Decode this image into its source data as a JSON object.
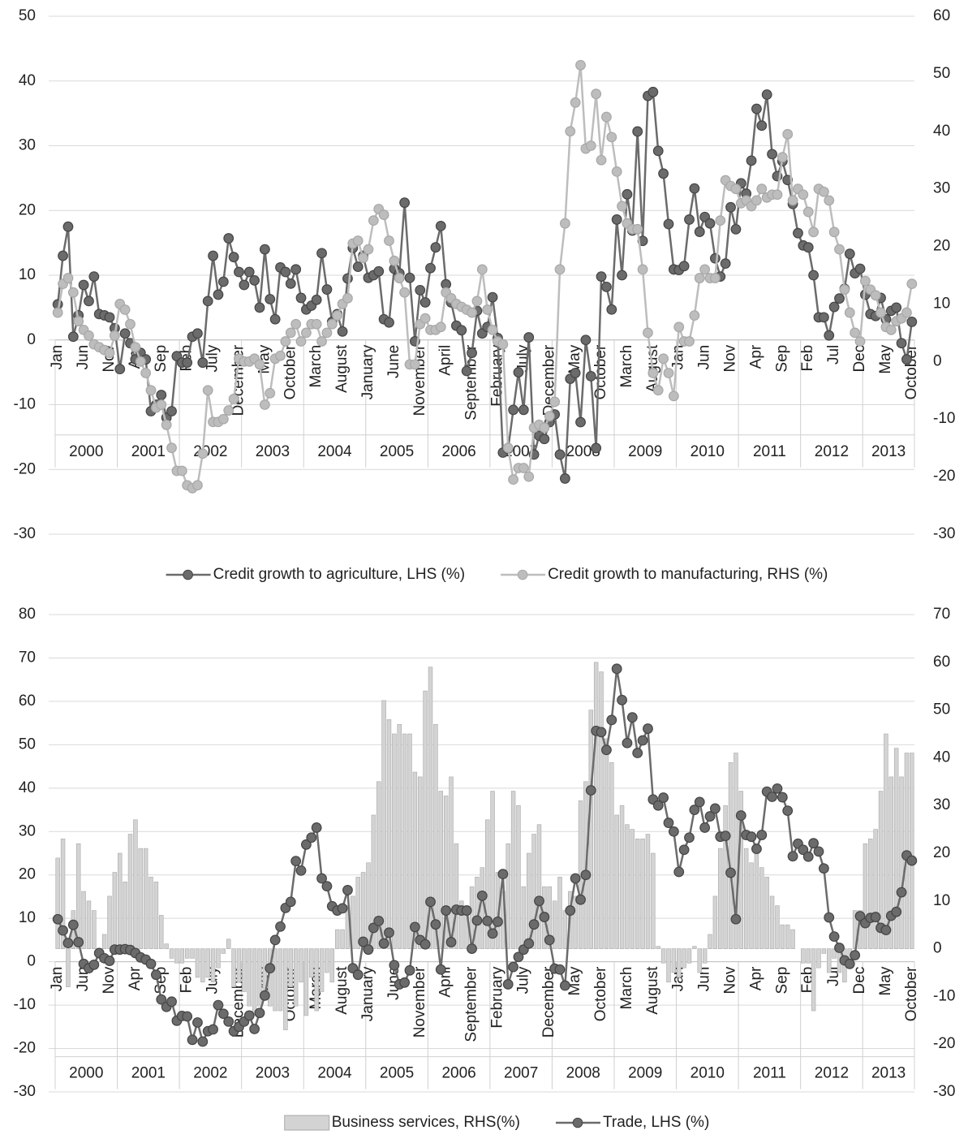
{
  "chart_data": [
    {
      "type": "line",
      "categories": [
        "Jan",
        null,
        null,
        null,
        null,
        "Jun",
        null,
        null,
        null,
        null,
        "Nov",
        null,
        null,
        null,
        null,
        "Apr",
        null,
        null,
        null,
        null,
        "Sep",
        null,
        null,
        null,
        null,
        "Feb",
        null,
        null,
        null,
        null,
        "July",
        null,
        null,
        null,
        null,
        "December",
        null,
        null,
        null,
        null,
        "May",
        null,
        null,
        null,
        null,
        "October",
        null,
        null,
        null,
        null,
        "March",
        null,
        null,
        null,
        null,
        "August",
        null,
        null,
        null,
        null,
        "January",
        null,
        null,
        null,
        null,
        "June",
        null,
        null,
        null,
        null,
        "November",
        null,
        null,
        null,
        null,
        "April",
        null,
        null,
        null,
        null,
        "September",
        null,
        null,
        null,
        null,
        "February",
        null,
        null,
        null,
        null,
        "July",
        null,
        null,
        null,
        null,
        "December",
        null,
        null,
        null,
        null,
        "May",
        null,
        null,
        null,
        null,
        "October",
        null,
        null,
        null,
        null,
        "March",
        null,
        null,
        null,
        null,
        "August",
        null,
        null,
        null,
        null,
        "Jan",
        null,
        null,
        null,
        null,
        "Jun",
        null,
        null,
        null,
        null,
        "Nov",
        null,
        null,
        null,
        null,
        "Apr",
        null,
        null,
        null,
        null,
        "Sep",
        null,
        null,
        null,
        null,
        "Feb",
        null,
        null,
        null,
        null,
        "Jul",
        null,
        null,
        null,
        null,
        "Dec",
        null,
        null,
        null,
        null,
        "May",
        null,
        null,
        null,
        null,
        "October"
      ],
      "x_groups": [
        "2000",
        "2001",
        "2002",
        "2003",
        "2004",
        "2005",
        "2006",
        "2007",
        "2008",
        "2009",
        "2010",
        "2011",
        "2012",
        "2013"
      ],
      "ylim": [
        -30,
        50
      ],
      "yticks": [
        -30,
        -20,
        -10,
        0,
        10,
        20,
        30,
        40,
        50
      ],
      "y2lim": [
        -30,
        60
      ],
      "y2ticks": [
        -30,
        -20,
        -10,
        0,
        10,
        20,
        30,
        40,
        50,
        60
      ],
      "grid": true,
      "series": [
        {
          "name": "Credit growth to agriculture, LHS  (%)",
          "type": "line",
          "color": "#6b6b6b",
          "values": [
            5.5,
            13,
            17.5,
            0.5,
            3.8,
            8.5,
            6,
            9.8,
            4,
            3.8,
            3.5,
            1.8,
            -4.5,
            1,
            -0.5,
            -3,
            -2,
            -3,
            -11,
            -10,
            -8.5,
            -12,
            -11,
            -2.5,
            -3.5,
            -3.5,
            0.5,
            1,
            -3.5,
            6,
            13,
            7,
            9,
            15.7,
            12.8,
            10.5,
            8.5,
            10.5,
            9.2,
            5,
            14,
            6.3,
            3.2,
            11.2,
            10.5,
            8.7,
            10.9,
            6.5,
            4.7,
            5.3,
            6.2,
            13.4,
            7.8,
            2.8,
            4,
            1.3,
            9.5,
            14.2,
            11.3,
            13,
            9.6,
            10,
            10.6,
            3.2,
            2.7,
            11,
            10.3,
            21.2,
            9.6,
            -0.2,
            7.7,
            5.8,
            11.1,
            14.3,
            17.6,
            8.6,
            5.8,
            2.2,
            1.5,
            -4.8,
            -2,
            4.5,
            1,
            2,
            6.6,
            0.3,
            -17.4,
            -16.8,
            -10.8,
            -5,
            -10.8,
            0.4,
            -17.7,
            -14.8,
            -15.3,
            -12.7,
            -11.5,
            -17.7,
            -21.4,
            -6,
            -5.1,
            -12.7,
            0,
            -5.6,
            -16.7,
            9.8,
            8.2,
            4.7,
            18.6,
            10,
            22.5,
            16.9,
            32.2,
            15.3,
            37.7,
            38.3,
            29.2,
            25.7,
            17.9,
            10.9,
            10.8,
            11.4,
            18.6,
            23.4,
            16.7,
            19,
            18,
            12.6,
            9.8,
            11.8,
            20.5,
            17.1,
            24.2,
            22.6,
            27.7,
            35.7,
            33.1,
            37.9,
            28.7,
            25.3,
            27.6,
            24.7,
            21,
            16.5,
            14.6,
            14.3,
            10,
            3.5,
            3.5,
            0.7,
            5.1,
            6.4,
            7.9,
            13.3,
            10.3,
            11,
            7,
            4,
            3.7,
            6.5,
            3.2,
            4.5,
            5,
            -0.5,
            -3,
            2.8
          ]
        },
        {
          "name": "Credit growth to manufacturing, RHS (%)",
          "type": "line",
          "axis": "y2",
          "color": "#bdbdbd",
          "values": [
            8.5,
            13.5,
            14.5,
            12,
            7,
            5.5,
            4.5,
            3,
            2.5,
            2,
            1.5,
            4.5,
            10,
            9,
            6.5,
            2.5,
            0,
            -2,
            -5,
            -8,
            -7.5,
            -11,
            -15,
            -19,
            -19,
            -21.5,
            -22,
            -21.5,
            -16,
            -5,
            -10.5,
            -10.5,
            -10,
            -8.5,
            -6.5,
            0.5,
            0,
            0,
            0.5,
            -0.5,
            -7.5,
            -5.5,
            0.5,
            1,
            3.5,
            5,
            6.5,
            3.5,
            5,
            6.5,
            6.5,
            3.5,
            5,
            6.5,
            8,
            10,
            11,
            20.5,
            21,
            18,
            19.5,
            24.5,
            26.5,
            25.5,
            21,
            17.5,
            14.5,
            12,
            -0.5,
            -0.5,
            6.5,
            7.5,
            5.5,
            5.5,
            6,
            12,
            11,
            10,
            9.5,
            9,
            8.5,
            10.5,
            16,
            9,
            5.5,
            3.5,
            3,
            -15,
            -20.5,
            -18.5,
            -18.5,
            -20,
            -11.5,
            -11,
            -11.5,
            -9.5,
            -7,
            16,
            24,
            40,
            45,
            51.5,
            37,
            37.5,
            46.5,
            35,
            42.5,
            39,
            33,
            27,
            24,
            23,
            23,
            16,
            5,
            -2,
            -5,
            0.5,
            -2,
            -6,
            6,
            3.5,
            3.5,
            8,
            14.5,
            16,
            14.5,
            14.5,
            24.5,
            31.5,
            30.5,
            30,
            27.5,
            28,
            27,
            28,
            30,
            28.5,
            29,
            29,
            35.5,
            39.5,
            28,
            30,
            29,
            26,
            22.5,
            30,
            29.5,
            28,
            22.5,
            19.5,
            12.5,
            8.5,
            5,
            3.5,
            14,
            12.5,
            11.5,
            8.5,
            6,
            5.5,
            7,
            7.5,
            8.5,
            13.5
          ]
        }
      ]
    },
    {
      "type": "combo",
      "categories": [
        "Jan",
        null,
        null,
        null,
        null,
        "Jun",
        null,
        null,
        null,
        null,
        "Nov",
        null,
        null,
        null,
        null,
        "Apr",
        null,
        null,
        null,
        null,
        "Sep",
        null,
        null,
        null,
        null,
        "Feb",
        null,
        null,
        null,
        null,
        "July",
        null,
        null,
        null,
        null,
        "December",
        null,
        null,
        null,
        null,
        "May",
        null,
        null,
        null,
        null,
        "October",
        null,
        null,
        null,
        null,
        "March",
        null,
        null,
        null,
        null,
        "August",
        null,
        null,
        null,
        null,
        "January",
        null,
        null,
        null,
        null,
        "June",
        null,
        null,
        null,
        null,
        "November",
        null,
        null,
        null,
        null,
        "April",
        null,
        null,
        null,
        null,
        "September",
        null,
        null,
        null,
        null,
        "February",
        null,
        null,
        null,
        null,
        "July",
        null,
        null,
        null,
        null,
        "December",
        null,
        null,
        null,
        null,
        "May",
        null,
        null,
        null,
        null,
        "October",
        null,
        null,
        null,
        null,
        "March",
        null,
        null,
        null,
        null,
        "August",
        null,
        null,
        null,
        null,
        "Jan",
        null,
        null,
        null,
        null,
        "Jun",
        null,
        null,
        null,
        null,
        "Nov",
        null,
        null,
        null,
        null,
        "Apr",
        null,
        null,
        null,
        null,
        "Sep",
        null,
        null,
        null,
        null,
        "Feb",
        null,
        null,
        null,
        null,
        "Jul",
        null,
        null,
        null,
        null,
        "Dec",
        null,
        null,
        null,
        null,
        "May",
        null,
        null,
        null,
        null,
        "October"
      ],
      "x_groups": [
        "2000",
        "2001",
        "2002",
        "2003",
        "2004",
        "2005",
        "2006",
        "2007",
        "2008",
        "2009",
        "2010",
        "2011",
        "2012",
        "2013"
      ],
      "ylim": [
        -30,
        80
      ],
      "yticks": [
        -30,
        -20,
        -10,
        0,
        10,
        20,
        30,
        40,
        50,
        60,
        70,
        80
      ],
      "y2lim": [
        -30,
        70
      ],
      "y2ticks": [
        -30,
        -20,
        -10,
        0,
        10,
        20,
        30,
        40,
        50,
        60,
        70
      ],
      "grid": true,
      "series": [
        {
          "name": "Business services, RHS(%)",
          "type": "bar",
          "axis": "y2",
          "color": "#d3d3d3",
          "values": [
            19,
            23,
            -8,
            8,
            22,
            12,
            10,
            8,
            -2,
            3,
            11,
            16,
            20,
            14,
            24,
            27,
            21,
            21,
            15,
            14,
            7,
            1,
            -2,
            -3,
            -3,
            -2,
            -2,
            -6,
            -7,
            -6,
            -7,
            -4,
            -1,
            2,
            -8,
            -7,
            -9,
            -12,
            -14,
            -12,
            -10,
            -12,
            -13,
            -13,
            -17,
            -8,
            -12,
            -7,
            -14,
            -6,
            -13,
            -9,
            -5,
            -7,
            4,
            4,
            9,
            11,
            15,
            16,
            18,
            28,
            35,
            52,
            48,
            45,
            47,
            45,
            45,
            37,
            36,
            54,
            59,
            47,
            33,
            32,
            36,
            22,
            10,
            9,
            13,
            15,
            17,
            27,
            33,
            16,
            12,
            22,
            33,
            30,
            13,
            20,
            24,
            26,
            13,
            13,
            10,
            15,
            8,
            12,
            11,
            31,
            35,
            50,
            60,
            58,
            44,
            39,
            28,
            30,
            26,
            25,
            23,
            23,
            24,
            20,
            0.5,
            -3,
            -7,
            -5,
            -6,
            -4,
            -3,
            0.5,
            -5,
            -3,
            3,
            11,
            21,
            30,
            39,
            41,
            33,
            21,
            18,
            22,
            17,
            15,
            11,
            9,
            5,
            5,
            4,
            0,
            -3,
            -3,
            -13,
            -4,
            -1,
            -5,
            -2,
            -5,
            -7,
            -2,
            8,
            8,
            22,
            23,
            25,
            33,
            45,
            36,
            42,
            36,
            41,
            41
          ]
        },
        {
          "name": "Trade, LHS (%)",
          "type": "line",
          "color": "#6b6b6b",
          "values": [
            9.8,
            7.2,
            4.3,
            8.5,
            4.5,
            -0.5,
            -1.5,
            -0.7,
            2,
            0.8,
            0.2,
            2.8,
            2.8,
            2.9,
            2.7,
            2,
            1,
            0.5,
            -0.5,
            -3,
            -8.7,
            -10.4,
            -9.2,
            -13.6,
            -12.5,
            -12.6,
            -18,
            -14,
            -18.4,
            -16,
            -15.6,
            -10,
            -12,
            -13.8,
            -16,
            -15,
            -13.8,
            -12.4,
            -15.5,
            -11.8,
            -7.8,
            -1.5,
            5,
            8.1,
            12.4,
            13.8,
            23.2,
            21,
            27,
            28.6,
            30.9,
            19.2,
            17.4,
            12.8,
            11.8,
            12.3,
            16.5,
            -1.5,
            -3,
            4.6,
            2.8,
            7.8,
            9.4,
            4.2,
            6.7,
            -0.8,
            -5.2,
            -4.8,
            -2,
            8,
            5,
            4,
            13.8,
            8.6,
            -1.8,
            11.8,
            4.5,
            12,
            11.8,
            11.8,
            3,
            9.5,
            15.2,
            9.4,
            6.5,
            9.2,
            20.2,
            -5.2,
            -1.2,
            1.1,
            2.8,
            4.2,
            8.6,
            14,
            10.3,
            5,
            -1.6,
            -1.8,
            -5.5,
            11.8,
            19.2,
            14.3,
            20,
            39.5,
            53.2,
            52.9,
            48.8,
            55.7,
            67.5,
            60.3,
            50.4,
            56.3,
            48.1,
            51,
            53.7,
            37.4,
            36,
            37.8,
            32,
            30,
            20.7,
            25.8,
            28.6,
            35,
            36.8,
            30.9,
            33.5,
            35.3,
            28.8,
            29,
            20.5,
            9.8,
            33.7,
            29.2,
            28.8,
            26,
            29.2,
            39.2,
            38,
            39.9,
            37.9,
            34.8,
            24.3,
            27.2,
            25.8,
            24.2,
            27.3,
            25.4,
            21.5,
            10.2,
            5.8,
            3.2,
            0.3,
            -0.5,
            1.5,
            10.5,
            8.9,
            10.1,
            10.3,
            7.8,
            7.3,
            10.6,
            11.5,
            16,
            24.5,
            23.3
          ]
        }
      ]
    }
  ]
}
